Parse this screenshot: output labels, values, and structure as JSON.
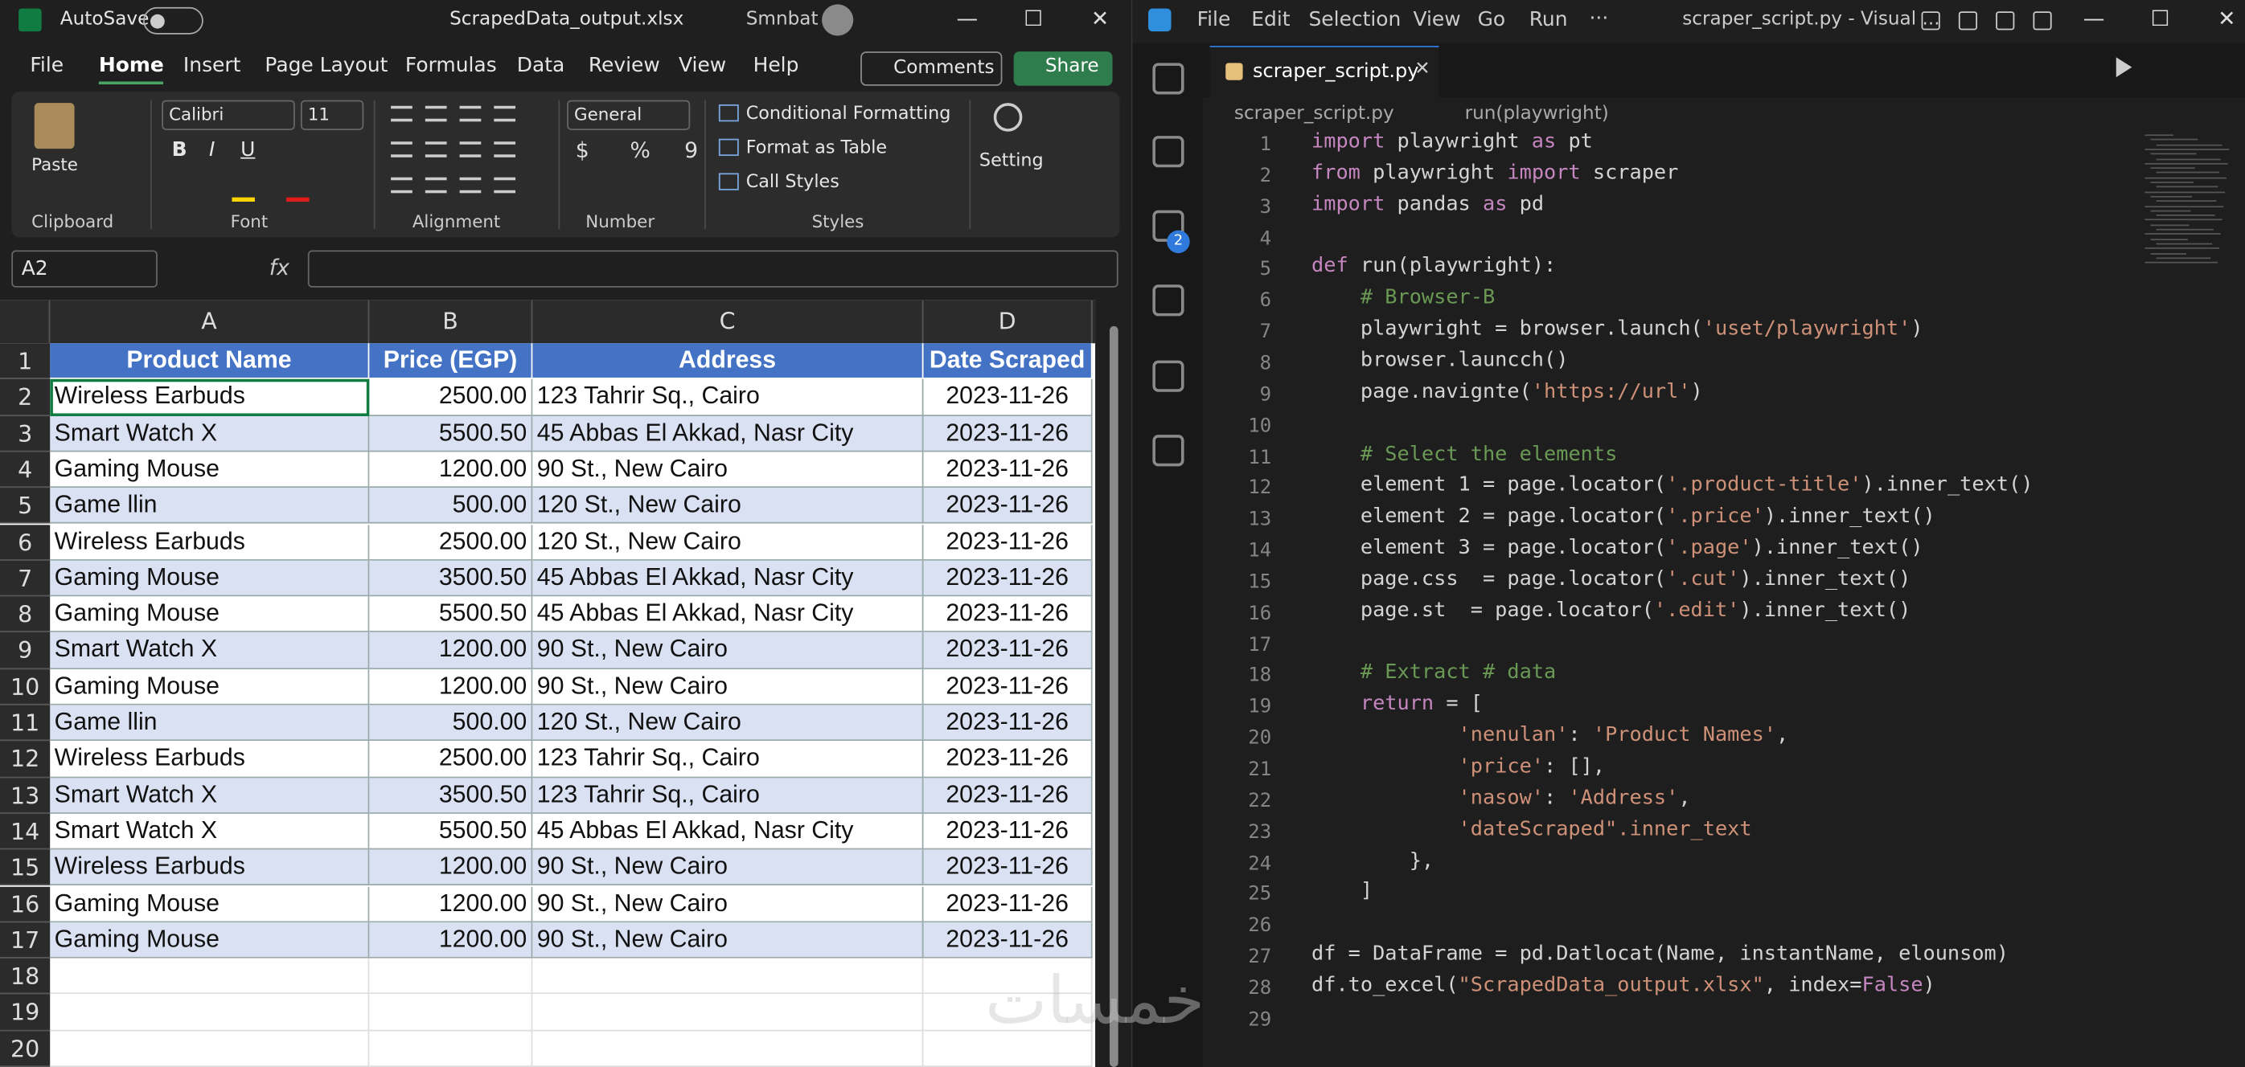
{
  "excel": {
    "titlebar": {
      "autosave": "AutoSave",
      "filename": "ScrapedData_output.xlsx",
      "user": "Smnbat"
    },
    "tabs": [
      "File",
      "Home",
      "Insert",
      "Page Layout",
      "Formulas",
      "Data",
      "Review",
      "View",
      "Help"
    ],
    "active_tab_index": 1,
    "buttons": {
      "comments": "Comments",
      "share": "Share"
    },
    "ribbon": {
      "paste": "Paste",
      "font": "Calibri",
      "font_size": "11",
      "format_buttons": [
        "B",
        "I",
        "U"
      ],
      "number_format": "General",
      "styles": [
        "Conditional Formatting",
        "Format as Table",
        "Call Styles"
      ],
      "setting": "Setting",
      "groups": [
        "Clipboard",
        "Font",
        "Alignment",
        "Number",
        "Styles"
      ]
    },
    "name_box": "A2",
    "fx": "fx",
    "columns": [
      "A",
      "B",
      "C",
      "D"
    ],
    "row_numbers": [
      1,
      2,
      3,
      4,
      5,
      6,
      7,
      8,
      9,
      10,
      11,
      12,
      13,
      14,
      15,
      16,
      17,
      18,
      19,
      20
    ],
    "header": [
      "Product Name",
      "Price (EGP)",
      "Address",
      "Date Scraped"
    ],
    "rows": [
      [
        "Wireless Earbuds",
        "2500.00",
        "123 Tahrir Sq., Cairo",
        "2023-11-26"
      ],
      [
        "Smart Watch X",
        "5500.50",
        "45 Abbas El Akkad, Nasr City",
        "2023-11-26"
      ],
      [
        "Gaming Mouse",
        "1200.00",
        "90 St., New Cairo",
        "2023-11-26"
      ],
      [
        "Game llin",
        "500.00",
        "120 St., New Cairo",
        "2023-11-26"
      ],
      [
        "Wireless Earbuds",
        "2500.00",
        "120 St., New Cairo",
        "2023-11-26"
      ],
      [
        "Gaming Mouse",
        "3500.50",
        "45 Abbas El Akkad, Nasr City",
        "2023-11-26"
      ],
      [
        "Gaming Mouse",
        "5500.50",
        "45 Abbas El Akkad, Nasr City",
        "2023-11-26"
      ],
      [
        "Smart Watch X",
        "1200.00",
        "90 St., New Cairo",
        "2023-11-26"
      ],
      [
        "Gaming Mouse",
        "1200.00",
        "90 St., New Cairo",
        "2023-11-26"
      ],
      [
        "Game llin",
        "500.00",
        "120 St., New Cairo",
        "2023-11-26"
      ],
      [
        "Wireless Earbuds",
        "2500.00",
        "123 Tahrir Sq., Cairo",
        "2023-11-26"
      ],
      [
        "Smart Watch X",
        "3500.50",
        "123 Tahrir Sq., Cairo",
        "2023-11-26"
      ],
      [
        "Smart Watch X",
        "5500.50",
        "45 Abbas El Akkad, Nasr City",
        "2023-11-26"
      ],
      [
        "Wireless Earbuds",
        "1200.00",
        "90 St., New Cairo",
        "2023-11-26"
      ],
      [
        "Gaming Mouse",
        "1200.00",
        "90 St., New Cairo",
        "2023-11-26"
      ],
      [
        "Gaming Mouse",
        "1200.00",
        "90 St., New Cairo",
        "2023-11-26"
      ]
    ]
  },
  "vscode": {
    "menu": [
      "File",
      "Edit",
      "Selection",
      "View",
      "Go",
      "Run"
    ],
    "more": "···",
    "title": "scraper_script.py - Visual ...",
    "tab": "scraper_script.py",
    "breadcrumb": [
      "scraper_script.py",
      "run(playwright)"
    ],
    "badge": "2",
    "lines": [
      {
        "n": 1,
        "code": "import playwright as pt"
      },
      {
        "n": 2,
        "code": "from playwright import scraper"
      },
      {
        "n": 3,
        "code": "import pandas as pd"
      },
      {
        "n": 4
      },
      {
        "n": 5,
        "code": "def run(playwright):"
      },
      {
        "n": 6,
        "code": "    # Browser-B"
      },
      {
        "n": 7,
        "code": "    playwright = browser.launch('uset/playwright')"
      },
      {
        "n": 8,
        "code": "    browser.launcch()"
      },
      {
        "n": 9,
        "code": "    page.navignte('https://url')"
      },
      {
        "n": 10
      },
      {
        "n": 11,
        "code": "    # Select the elements"
      },
      {
        "n": 12,
        "code": "    element 1 = page.locator('.product-title').inner_text()"
      },
      {
        "n": 13,
        "code": "    element 2 = page.locator('.price').inner_text()"
      },
      {
        "n": 14,
        "code": "    element 3 = page.locator('.page').inner_text()"
      },
      {
        "n": 15,
        "code": "    page.css  = page.locator('.cut').inner_text()"
      },
      {
        "n": 16,
        "code": "    page.st  = page.locator('.edit').inner_text()"
      },
      {
        "n": 17
      },
      {
        "n": 18,
        "code": "    # Extract # data"
      },
      {
        "n": 19,
        "code": "    return = ["
      },
      {
        "n": 20,
        "code": "            'nenulan': 'Product Names',"
      },
      {
        "n": 21,
        "code": "            'price': [],"
      },
      {
        "n": 22,
        "code": "            'nasow': 'Address',"
      },
      {
        "n": 23,
        "code": "            'dateScraped\".inner_text"
      },
      {
        "n": 24,
        "code": "        },"
      },
      {
        "n": 25,
        "code": "    ]"
      },
      {
        "n": 26
      },
      {
        "n": 27,
        "code": "df = DataFrame = pd.Datlocat(Name, instantName, elounsom)"
      },
      {
        "n": 28,
        "code": "df.to_excel(\"ScrapedData_output.xlsx\", index=False)"
      },
      {
        "n": 29
      }
    ]
  },
  "watermark": "خمسات"
}
